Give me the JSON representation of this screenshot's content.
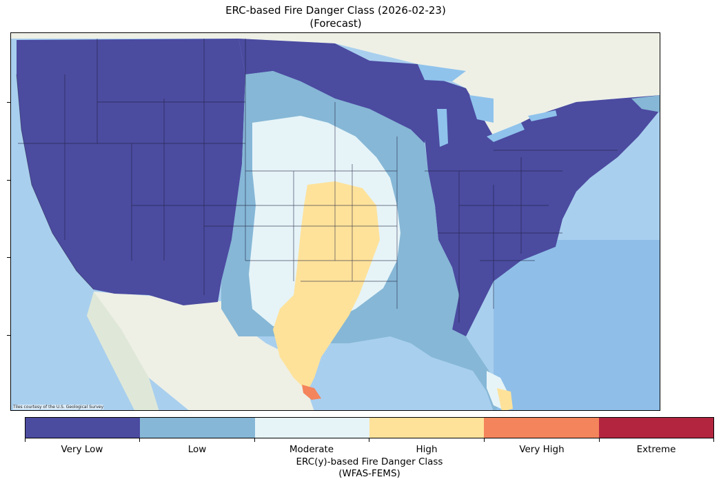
{
  "title": {
    "line1": "ERC-based Fire Danger Class (2026-02-23)",
    "line2": "(Forecast)"
  },
  "attribution": "Tiles courtesy of the U.S. Geological Survey",
  "colorbar": {
    "title_line1": "ERC(y)-based Fire Danger Class",
    "title_line2": "(WFAS-FEMS)",
    "classes": [
      {
        "label": "Very Low",
        "color": "#4b4ba0"
      },
      {
        "label": "Low",
        "color": "#86b7d6"
      },
      {
        "label": "Moderate",
        "color": "#e6f4f8"
      },
      {
        "label": "High",
        "color": "#fee29a"
      },
      {
        "label": "Very High",
        "color": "#f4845c"
      },
      {
        "label": "Extreme",
        "color": "#b3253f"
      }
    ]
  },
  "map_colors": {
    "ocean": "#a9cfee",
    "land": "#eef0e6",
    "lake": "#8fc3ec",
    "state_border": "#202040"
  }
}
